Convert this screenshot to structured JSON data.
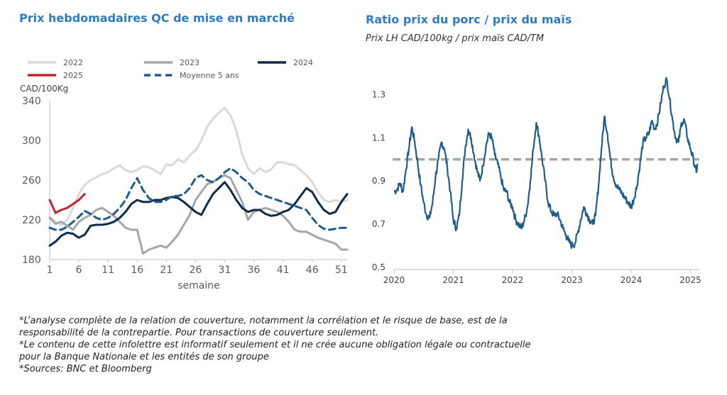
{
  "left": {
    "title": "Prix hebdomadaires QC de mise en marché"
  },
  "right": {
    "title": "Ratio prix du porc / prix du maïs",
    "subtitle": "Prix LH CAD/100kg / prix maïs CAD/TM"
  },
  "footnotes": [
    "*L’analyse complète de la relation de couverture, notamment la corrélation et le risque de base, est de la",
    "responsabilité de la contrepartie. Pour transactions de couverture seulement.",
    "*Le contenu de cette infolettre est informatif seulement et il ne crée aucune obligation légale ou contractuelle",
    "pour la Banque Nationale et les entités de son groupe",
    "*Sources: BNC et Bloomberg"
  ],
  "colors": {
    "title": "#2E7BC4",
    "y2022": "#D9D9D9",
    "y2023": "#A6A6A6",
    "y2024": "#0D2C4B",
    "y2025": "#C0272D",
    "avg5": "#1F5C8C",
    "ratio": "#1F5C8C",
    "ratio_ref": "#A6A6A6"
  },
  "chart_data": [
    {
      "type": "line",
      "title": "Prix hebdomadaires QC de mise en marché",
      "ylabel": "CAD/100Kg",
      "xlabel": "semaine",
      "ylim": [
        180,
        340
      ],
      "xlim": [
        1,
        52
      ],
      "yticks": [
        180,
        220,
        260,
        300,
        340
      ],
      "xticks": [
        1,
        6,
        11,
        16,
        21,
        26,
        31,
        36,
        41,
        46,
        51
      ],
      "legend": "top",
      "series": [
        {
          "name": "2022",
          "style": "solid",
          "x": [
            1,
            2,
            3,
            4,
            5,
            6,
            7,
            8,
            9,
            10,
            11,
            12,
            13,
            14,
            15,
            16,
            17,
            18,
            19,
            20,
            21,
            22,
            23,
            24,
            25,
            26,
            27,
            28,
            29,
            30,
            31,
            32,
            33,
            34,
            35,
            36,
            37,
            38,
            39,
            40,
            41,
            42,
            43,
            44,
            45,
            46,
            47,
            48,
            49,
            50,
            51,
            52
          ],
          "values": [
            223,
            218,
            215,
            220,
            232,
            246,
            255,
            260,
            263,
            266,
            268,
            272,
            275,
            270,
            268,
            270,
            274,
            273,
            270,
            266,
            276,
            275,
            281,
            278,
            285,
            290,
            300,
            314,
            322,
            328,
            333,
            325,
            310,
            286,
            272,
            266,
            272,
            268,
            271,
            278,
            278,
            276,
            275,
            270,
            265,
            258,
            248,
            240,
            238,
            240,
            238,
            240
          ]
        },
        {
          "name": "2023",
          "style": "solid",
          "x": [
            1,
            2,
            3,
            4,
            5,
            6,
            7,
            8,
            9,
            10,
            11,
            12,
            13,
            14,
            15,
            16,
            17,
            18,
            19,
            20,
            21,
            22,
            23,
            24,
            25,
            26,
            27,
            28,
            29,
            30,
            31,
            32,
            33,
            34,
            35,
            36,
            37,
            38,
            39,
            40,
            41,
            42,
            43,
            44,
            45,
            46,
            47,
            48,
            49,
            50,
            51,
            52
          ],
          "values": [
            222,
            216,
            218,
            214,
            210,
            218,
            222,
            225,
            230,
            232,
            228,
            224,
            218,
            212,
            210,
            210,
            186,
            190,
            192,
            194,
            192,
            198,
            205,
            215,
            225,
            240,
            248,
            256,
            258,
            262,
            265,
            262,
            250,
            238,
            220,
            228,
            230,
            232,
            230,
            228,
            224,
            218,
            210,
            208,
            208,
            205,
            202,
            200,
            198,
            196,
            190,
            190
          ]
        },
        {
          "name": "2024",
          "style": "solid",
          "x": [
            1,
            2,
            3,
            4,
            5,
            6,
            7,
            8,
            9,
            10,
            11,
            12,
            13,
            14,
            15,
            16,
            17,
            18,
            19,
            20,
            21,
            22,
            23,
            24,
            25,
            26,
            27,
            28,
            29,
            30,
            31,
            32,
            33,
            34,
            35,
            36,
            37,
            38,
            39,
            40,
            41,
            42,
            43,
            44,
            45,
            46,
            47,
            48,
            49,
            50,
            51,
            52
          ],
          "values": [
            194,
            198,
            204,
            207,
            206,
            202,
            205,
            214,
            215,
            215,
            216,
            218,
            222,
            228,
            236,
            240,
            238,
            238,
            240,
            240,
            242,
            243,
            242,
            238,
            233,
            228,
            225,
            236,
            246,
            252,
            258,
            250,
            240,
            232,
            228,
            230,
            230,
            226,
            224,
            225,
            228,
            230,
            236,
            244,
            252,
            248,
            238,
            230,
            226,
            228,
            238,
            246
          ]
        },
        {
          "name": "2025",
          "style": "solid",
          "x": [
            1,
            2,
            3,
            4,
            5,
            6,
            7
          ],
          "values": [
            240,
            227,
            230,
            232,
            236,
            240,
            246
          ]
        },
        {
          "name": "Moyenne 5 ans",
          "style": "dashed",
          "x": [
            1,
            2,
            3,
            4,
            5,
            6,
            7,
            8,
            9,
            10,
            11,
            12,
            13,
            14,
            15,
            16,
            17,
            18,
            19,
            20,
            21,
            22,
            23,
            24,
            25,
            26,
            27,
            28,
            29,
            30,
            31,
            32,
            33,
            34,
            35,
            36,
            37,
            38,
            39,
            40,
            41,
            42,
            43,
            44,
            45,
            46,
            47,
            48,
            49,
            50,
            51,
            52
          ],
          "values": [
            212,
            210,
            210,
            213,
            218,
            223,
            229,
            226,
            222,
            220,
            222,
            226,
            232,
            240,
            252,
            262,
            250,
            242,
            238,
            238,
            240,
            244,
            244,
            246,
            252,
            262,
            265,
            260,
            258,
            262,
            268,
            272,
            268,
            262,
            258,
            250,
            246,
            244,
            242,
            240,
            238,
            236,
            234,
            232,
            230,
            222,
            215,
            211,
            210,
            211,
            212,
            212
          ]
        }
      ]
    },
    {
      "type": "line",
      "title": "Ratio prix du porc / prix du maïs",
      "subtitle": "Prix LH CAD/100kg / prix maïs CAD/TM",
      "ylim": [
        0.5,
        1.4
      ],
      "yticks": [
        0.5,
        0.7,
        0.9,
        1.1,
        1.3
      ],
      "xlim": [
        2020.0,
        2025.15
      ],
      "xticks": [
        "2020",
        "2021",
        "2022",
        "2023",
        "2024",
        "2025"
      ],
      "reference_line": 1.0,
      "series": [
        {
          "name": "",
          "x": [
            2020.0,
            2020.05,
            2020.1,
            2020.15,
            2020.2,
            2020.25,
            2020.3,
            2020.35,
            2020.4,
            2020.45,
            2020.5,
            2020.55,
            2020.6,
            2020.65,
            2020.7,
            2020.75,
            2020.8,
            2020.85,
            2020.9,
            2020.95,
            2021.0,
            2021.05,
            2021.1,
            2021.15,
            2021.2,
            2021.25,
            2021.3,
            2021.35,
            2021.4,
            2021.45,
            2021.5,
            2021.55,
            2021.6,
            2021.65,
            2021.7,
            2021.75,
            2021.8,
            2021.85,
            2021.9,
            2021.95,
            2022.0,
            2022.05,
            2022.1,
            2022.15,
            2022.2,
            2022.25,
            2022.3,
            2022.35,
            2022.4,
            2022.45,
            2022.5,
            2022.55,
            2022.6,
            2022.65,
            2022.7,
            2022.75,
            2022.8,
            2022.85,
            2022.9,
            2022.95,
            2023.0,
            2023.05,
            2023.1,
            2023.15,
            2023.2,
            2023.25,
            2023.3,
            2023.35,
            2023.4,
            2023.45,
            2023.5,
            2023.55,
            2023.6,
            2023.65,
            2023.7,
            2023.75,
            2023.8,
            2023.85,
            2023.9,
            2023.95,
            2024.0,
            2024.05,
            2024.1,
            2024.15,
            2024.2,
            2024.25,
            2024.3,
            2024.35,
            2024.4,
            2024.45,
            2024.5,
            2024.55,
            2024.6,
            2024.65,
            2024.7,
            2024.75,
            2024.8,
            2024.85,
            2024.9,
            2024.95,
            2025.0,
            2025.05,
            2025.1,
            2025.12
          ],
          "values": [
            0.85,
            0.86,
            0.89,
            0.85,
            0.95,
            1.05,
            1.15,
            1.08,
            0.98,
            0.88,
            0.8,
            0.74,
            0.73,
            0.8,
            0.92,
            1.0,
            1.08,
            1.05,
            0.96,
            0.85,
            0.72,
            0.68,
            0.74,
            0.9,
            1.05,
            1.14,
            1.1,
            1.02,
            0.95,
            0.9,
            0.97,
            1.06,
            1.12,
            1.1,
            1.02,
            0.98,
            0.92,
            0.86,
            0.85,
            0.8,
            0.78,
            0.72,
            0.7,
            0.68,
            0.72,
            0.78,
            0.9,
            1.05,
            1.17,
            1.1,
            1.0,
            0.9,
            0.8,
            0.76,
            0.74,
            0.75,
            0.72,
            0.68,
            0.65,
            0.62,
            0.6,
            0.61,
            0.66,
            0.72,
            0.78,
            0.75,
            0.72,
            0.7,
            0.74,
            0.88,
            1.05,
            1.2,
            1.12,
            1.0,
            0.92,
            0.88,
            0.86,
            0.84,
            0.82,
            0.8,
            0.78,
            0.82,
            0.88,
            0.98,
            1.08,
            1.1,
            1.12,
            1.18,
            1.14,
            1.18,
            1.26,
            1.34,
            1.37,
            1.28,
            1.18,
            1.1,
            1.08,
            1.17,
            1.18,
            1.1,
            1.05,
            1.0,
            0.94,
            0.98
          ]
        }
      ]
    }
  ]
}
